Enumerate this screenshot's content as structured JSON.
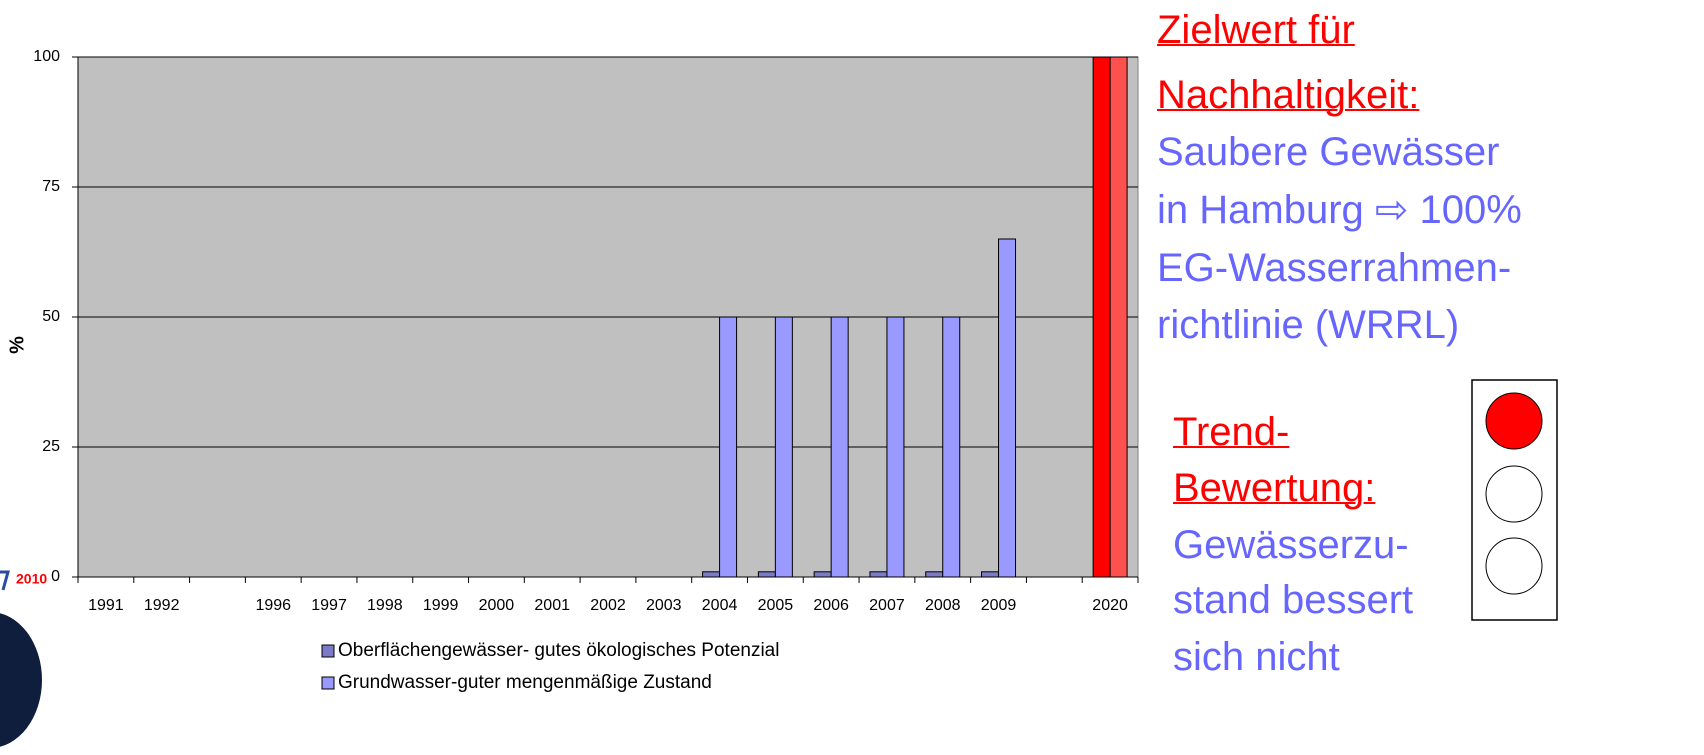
{
  "chart_data": {
    "type": "bar",
    "y_label": "%",
    "categories": [
      "1991",
      "1992",
      null,
      "1996",
      "1997",
      "1998",
      "1999",
      "2000",
      "2001",
      "2002",
      "2003",
      "2004",
      "2005",
      "2006",
      "2007",
      "2008",
      "2009",
      null,
      "2020"
    ],
    "series": [
      {
        "name": "Oberflächengewässer- gutes ökologisches Potenzial",
        "color": "#7b7bc8",
        "values": [
          null,
          null,
          null,
          null,
          null,
          null,
          null,
          null,
          null,
          null,
          null,
          1,
          1,
          1,
          1,
          1,
          1,
          null,
          100
        ],
        "colors": [
          null,
          null,
          null,
          null,
          null,
          null,
          null,
          null,
          null,
          null,
          null,
          "#7b7bc8",
          "#7b7bc8",
          "#7b7bc8",
          "#7b7bc8",
          "#7b7bc8",
          "#7b7bc8",
          null,
          "#ff0000"
        ]
      },
      {
        "name": "Grundwasser-guter mengenmäßige Zustand",
        "color": "#9999ff",
        "values": [
          null,
          null,
          null,
          null,
          null,
          null,
          null,
          null,
          null,
          null,
          null,
          50,
          50,
          50,
          50,
          50,
          65,
          null,
          100
        ],
        "colors": [
          null,
          null,
          null,
          null,
          null,
          null,
          null,
          null,
          null,
          null,
          null,
          "#9999ff",
          "#9999ff",
          "#9999ff",
          "#9999ff",
          "#9999ff",
          "#9999ff",
          null,
          "#ff5050"
        ]
      }
    ],
    "ylim": [
      0,
      100
    ],
    "yticks": [
      0,
      25,
      50,
      75,
      100
    ],
    "grid": true,
    "plot_background": "#c0c0c0",
    "legend": "bottom"
  },
  "fragment_label": "2010",
  "panel": {
    "target_heading": [
      "Zielwert für",
      "Nachhaltigkeit:"
    ],
    "target_text": [
      "Saubere Gewässer",
      "in Hamburg ⇨ 100%",
      "EG-Wasserrahmen-",
      "richtlinie (WRRL)"
    ],
    "trend_heading": [
      "Trend-",
      "Bewertung:"
    ],
    "trend_text": [
      "Gewässerzu-",
      "stand bessert",
      "sich nicht"
    ]
  }
}
